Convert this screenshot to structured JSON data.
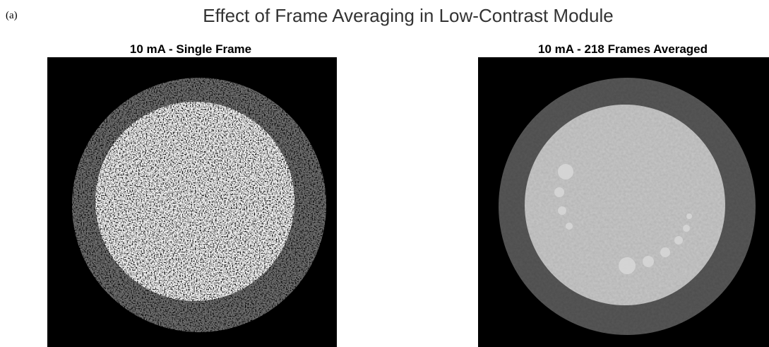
{
  "figure": {
    "label": "(a)",
    "title": "Effect of Frame Averaging in Low-Contrast Module",
    "panels": [
      {
        "title": "10 mA - Single Frame"
      },
      {
        "title": "10 mA - 218 Frames Averaged"
      }
    ]
  }
}
